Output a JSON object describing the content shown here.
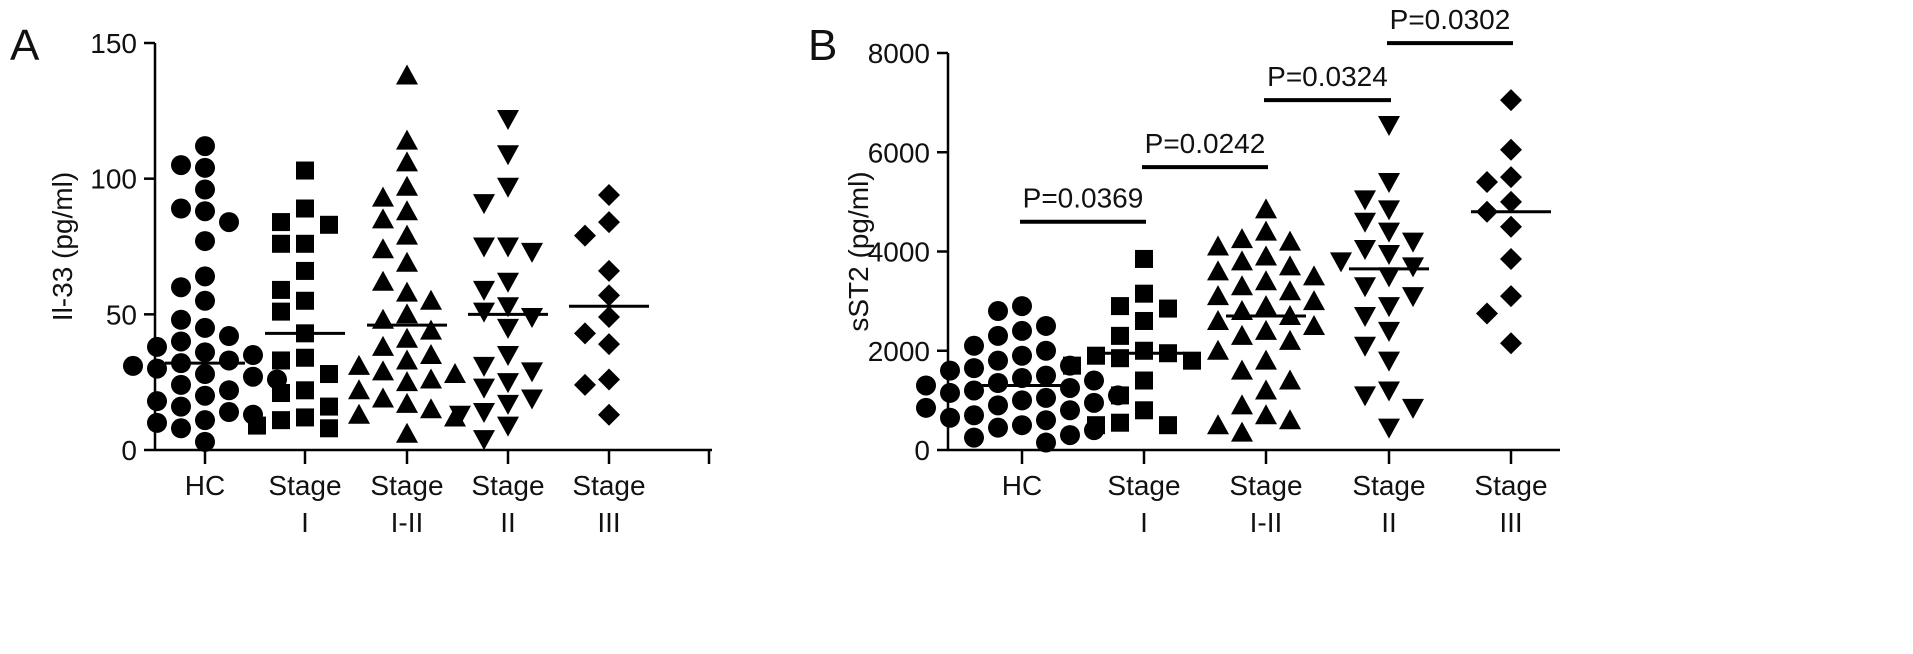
{
  "chart_data": [
    {
      "type": "scatter",
      "panel": "A",
      "ylabel": "Il-33 (pg/ml)",
      "ylim": [
        0,
        150
      ],
      "yticks": [
        "0",
        "50",
        "100",
        "150"
      ],
      "categories": [
        {
          "line1": "HC",
          "line2": ""
        },
        {
          "line1": "Stage",
          "line2": "I"
        },
        {
          "line1": "Stage",
          "line2": "I-II"
        },
        {
          "line1": "Stage",
          "line2": "II"
        },
        {
          "line1": "Stage",
          "line2": "III"
        }
      ],
      "series": [
        {
          "marker": "circle",
          "median": 32,
          "values": [
            112,
            105,
            104,
            96,
            89,
            88,
            84,
            77,
            64,
            60,
            55,
            48,
            45,
            42,
            40,
            38,
            36,
            35,
            33,
            32,
            31,
            30,
            28,
            27,
            26,
            24,
            22,
            20,
            18,
            16,
            14,
            13,
            11,
            10,
            8,
            3
          ]
        },
        {
          "marker": "square",
          "median": 43,
          "values": [
            103,
            89,
            84,
            83,
            76,
            76,
            66,
            59,
            55,
            51,
            43,
            34,
            33,
            28,
            22,
            21,
            16,
            12,
            11,
            9,
            8
          ]
        },
        {
          "marker": "triangle-up",
          "median": 46,
          "values": [
            138,
            114,
            106,
            97,
            93,
            88,
            85,
            79,
            74,
            69,
            62,
            58,
            55,
            50,
            48,
            44,
            41,
            38,
            35,
            33,
            31,
            29,
            28,
            26,
            25,
            22,
            19,
            17,
            15,
            13,
            12,
            6
          ]
        },
        {
          "marker": "triangle-down",
          "median": 50,
          "values": [
            122,
            109,
            97,
            91,
            75,
            75,
            73,
            62,
            59,
            53,
            51,
            49,
            45,
            35,
            31,
            29,
            25,
            23,
            19,
            17,
            14,
            13,
            9,
            4
          ]
        },
        {
          "marker": "diamond",
          "median": 53,
          "values": [
            94,
            84,
            79,
            66,
            57,
            49,
            43,
            39,
            26,
            24,
            13
          ]
        }
      ]
    },
    {
      "type": "scatter",
      "panel": "B",
      "ylabel": "sST2 (pg/ml)",
      "ylim": [
        0,
        8000
      ],
      "yticks": [
        "0",
        "2000",
        "4000",
        "6000",
        "8000"
      ],
      "categories": [
        {
          "line1": "HC",
          "line2": ""
        },
        {
          "line1": "Stage",
          "line2": "I"
        },
        {
          "line1": "Stage",
          "line2": "I-II"
        },
        {
          "line1": "Stage",
          "line2": "II"
        },
        {
          "line1": "Stage",
          "line2": "III"
        }
      ],
      "comparisons": [
        {
          "from": 0,
          "to": 1,
          "label": "P=0.0369",
          "y": 4600
        },
        {
          "from": 1,
          "to": 2,
          "label": "P=0.0242",
          "y": 5700
        },
        {
          "from": 2,
          "to": 3,
          "label": "P=0.0324",
          "y": 7050
        },
        {
          "from": 3,
          "to": 4,
          "label": "P=0.0302",
          "y": 8200
        }
      ],
      "series": [
        {
          "marker": "circle",
          "median": 1300,
          "values": [
            2900,
            2800,
            2500,
            2400,
            2300,
            2100,
            2000,
            1900,
            1800,
            1700,
            1650,
            1600,
            1500,
            1450,
            1400,
            1350,
            1300,
            1250,
            1200,
            1150,
            1100,
            1050,
            1000,
            950,
            900,
            850,
            800,
            700,
            650,
            600,
            500,
            450,
            400,
            300,
            250,
            150
          ]
        },
        {
          "marker": "square",
          "median": 1950,
          "values": [
            3850,
            3150,
            2900,
            2850,
            2600,
            2300,
            2000,
            1950,
            1900,
            1850,
            1800,
            1700,
            1400,
            1100,
            800,
            550,
            500,
            500
          ]
        },
        {
          "marker": "triangle-up",
          "median": 2700,
          "values": [
            4850,
            4400,
            4250,
            4200,
            4100,
            3900,
            3800,
            3700,
            3600,
            3500,
            3400,
            3300,
            3200,
            3100,
            3000,
            2900,
            2800,
            2700,
            2600,
            2500,
            2400,
            2300,
            2200,
            2000,
            1800,
            1600,
            1400,
            1200,
            900,
            700,
            600,
            500,
            350
          ]
        },
        {
          "marker": "triangle-down",
          "median": 3650,
          "values": [
            6550,
            5400,
            5050,
            4850,
            4600,
            4400,
            4200,
            4050,
            3950,
            3800,
            3700,
            3500,
            3300,
            3100,
            2900,
            2700,
            2400,
            2100,
            1800,
            1200,
            1100,
            850,
            450
          ]
        },
        {
          "marker": "diamond",
          "median": 4800,
          "values": [
            7050,
            6050,
            5500,
            5400,
            5000,
            4800,
            4500,
            3850,
            3100,
            2750,
            2150
          ]
        }
      ]
    }
  ]
}
